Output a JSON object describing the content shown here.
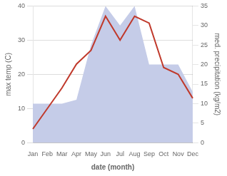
{
  "chart_data": {
    "type": "line",
    "xlabel": "date (month)",
    "ylabel": "max temp (C)",
    "y2label": "med. precipitation (kg/m2)",
    "categories": [
      "Jan",
      "Feb",
      "Mar",
      "Apr",
      "May",
      "Jun",
      "Jul",
      "Aug",
      "Sep",
      "Oct",
      "Nov",
      "Dec"
    ],
    "series": [
      {
        "type": "area",
        "axis": "y2",
        "color": "#c5cce8",
        "values": [
          10,
          10,
          10,
          11,
          25,
          35,
          30,
          35,
          20,
          20,
          20,
          13
        ]
      },
      {
        "type": "line",
        "color": "#c0392b",
        "values": [
          4,
          10,
          16,
          23,
          27,
          37,
          30,
          37,
          35,
          22,
          20,
          13
        ]
      }
    ],
    "ylim": [
      0,
      40
    ],
    "yticks": [
      0,
      10,
      20,
      30,
      40
    ],
    "y2lim": [
      0,
      35
    ],
    "y2ticks": [
      0,
      5,
      10,
      15,
      20,
      25,
      30,
      35
    ],
    "grid": true
  }
}
